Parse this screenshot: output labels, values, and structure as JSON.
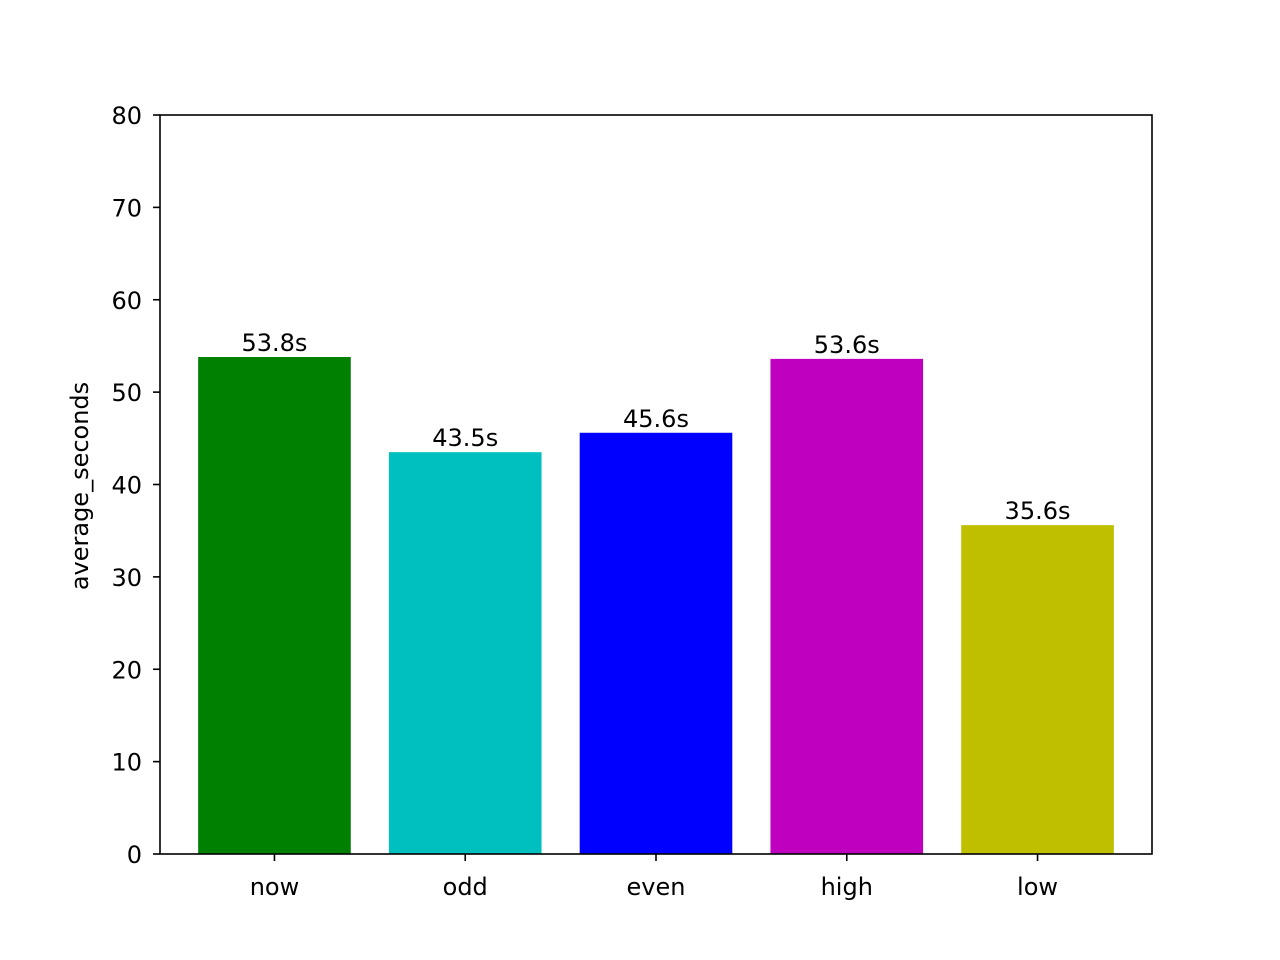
{
  "chart_data": {
    "type": "bar",
    "title": "",
    "xlabel": "",
    "ylabel": "average_seconds",
    "categories": [
      "now",
      "odd",
      "even",
      "high",
      "low"
    ],
    "values": [
      53.8,
      43.5,
      45.6,
      53.6,
      35.6
    ],
    "value_labels": [
      "53.8s",
      "43.5s",
      "45.6s",
      "53.6s",
      "35.6s"
    ],
    "colors": [
      "#008000",
      "#00bfbf",
      "#0000ff",
      "#bf00bf",
      "#bfbf00"
    ],
    "ylim": [
      0,
      80
    ],
    "yticks": [
      0,
      10,
      20,
      30,
      40,
      50,
      60,
      70,
      80
    ],
    "grid": false,
    "legend": "none"
  }
}
